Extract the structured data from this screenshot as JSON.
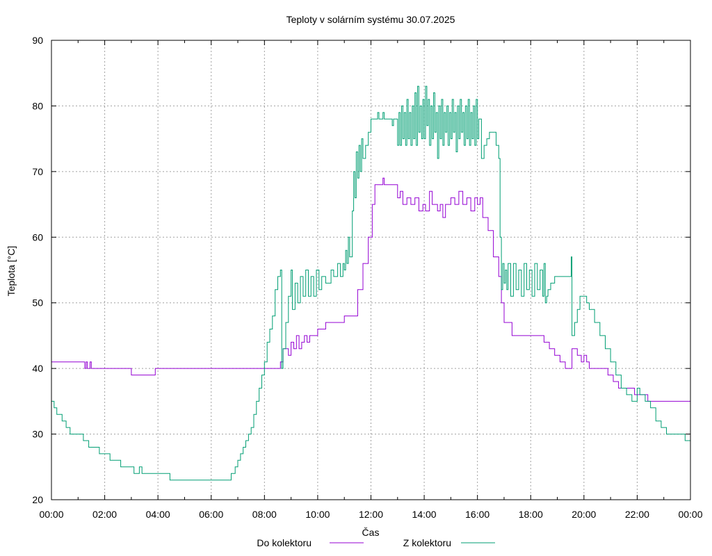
{
  "chart_data": {
    "type": "line",
    "title": "Teploty v solárním systému 30.07.2025",
    "xlabel": "Čas",
    "ylabel": "Teplota [°C]",
    "xlim": [
      0,
      24
    ],
    "ylim": [
      20,
      90
    ],
    "grid": true,
    "legend_position": "bottom-center",
    "xticks": [
      {
        "v": 0,
        "label": "00:00"
      },
      {
        "v": 2,
        "label": "02:00"
      },
      {
        "v": 4,
        "label": "04:00"
      },
      {
        "v": 6,
        "label": "06:00"
      },
      {
        "v": 8,
        "label": "08:00"
      },
      {
        "v": 10,
        "label": "10:00"
      },
      {
        "v": 12,
        "label": "12:00"
      },
      {
        "v": 14,
        "label": "14:00"
      },
      {
        "v": 16,
        "label": "16:00"
      },
      {
        "v": 18,
        "label": "18:00"
      },
      {
        "v": 20,
        "label": "20:00"
      },
      {
        "v": 22,
        "label": "22:00"
      },
      {
        "v": 24,
        "label": "00:00"
      }
    ],
    "yticks": [
      20,
      30,
      40,
      50,
      60,
      70,
      80,
      90
    ],
    "series": [
      {
        "name": "Do kolektoru",
        "color": "#9400d3",
        "points": [
          [
            0,
            41
          ],
          [
            1.25,
            41
          ],
          [
            1.25,
            40
          ],
          [
            1.3,
            41
          ],
          [
            1.35,
            40
          ],
          [
            1.45,
            41
          ],
          [
            1.5,
            40
          ],
          [
            3.0,
            40
          ],
          [
            3.0,
            39
          ],
          [
            3.9,
            39
          ],
          [
            3.9,
            40
          ],
          [
            8.6,
            40
          ],
          [
            8.6,
            41
          ],
          [
            8.7,
            43
          ],
          [
            8.85,
            43
          ],
          [
            8.9,
            42
          ],
          [
            9.0,
            44
          ],
          [
            9.1,
            43
          ],
          [
            9.2,
            45
          ],
          [
            9.3,
            43
          ],
          [
            9.4,
            44
          ],
          [
            9.5,
            45
          ],
          [
            9.6,
            44
          ],
          [
            9.7,
            45
          ],
          [
            9.9,
            45
          ],
          [
            10.0,
            46
          ],
          [
            10.2,
            46
          ],
          [
            10.3,
            47
          ],
          [
            11.0,
            47
          ],
          [
            11.0,
            48
          ],
          [
            11.4,
            48
          ],
          [
            11.5,
            52
          ],
          [
            11.7,
            56
          ],
          [
            11.9,
            60
          ],
          [
            12.05,
            65
          ],
          [
            12.15,
            68
          ],
          [
            12.4,
            68
          ],
          [
            12.45,
            69
          ],
          [
            12.5,
            68
          ],
          [
            12.9,
            68
          ],
          [
            13.0,
            66
          ],
          [
            13.1,
            67
          ],
          [
            13.2,
            65
          ],
          [
            13.35,
            66
          ],
          [
            13.5,
            65
          ],
          [
            13.65,
            66
          ],
          [
            13.8,
            64
          ],
          [
            13.95,
            65
          ],
          [
            14.05,
            64
          ],
          [
            14.2,
            67
          ],
          [
            14.3,
            65
          ],
          [
            14.5,
            64
          ],
          [
            14.6,
            65
          ],
          [
            14.7,
            63
          ],
          [
            14.8,
            65
          ],
          [
            15.0,
            66
          ],
          [
            15.15,
            65
          ],
          [
            15.3,
            67
          ],
          [
            15.45,
            65
          ],
          [
            15.6,
            66
          ],
          [
            15.75,
            64
          ],
          [
            15.9,
            66
          ],
          [
            16.0,
            65
          ],
          [
            16.1,
            66
          ],
          [
            16.2,
            63
          ],
          [
            16.4,
            61
          ],
          [
            16.6,
            57
          ],
          [
            16.8,
            54
          ],
          [
            16.9,
            50
          ],
          [
            17.0,
            47
          ],
          [
            17.3,
            45
          ],
          [
            18.4,
            45
          ],
          [
            18.5,
            44
          ],
          [
            18.7,
            43
          ],
          [
            18.9,
            42
          ],
          [
            19.1,
            41
          ],
          [
            19.3,
            40
          ],
          [
            19.5,
            40
          ],
          [
            19.55,
            43
          ],
          [
            19.7,
            43
          ],
          [
            19.75,
            42
          ],
          [
            19.9,
            41
          ],
          [
            20.0,
            42
          ],
          [
            20.1,
            41
          ],
          [
            20.2,
            40
          ],
          [
            20.9,
            39
          ],
          [
            21.1,
            38
          ],
          [
            21.3,
            37
          ],
          [
            21.8,
            37
          ],
          [
            21.9,
            36
          ],
          [
            22.3,
            36
          ],
          [
            22.4,
            35
          ],
          [
            24,
            35
          ]
        ]
      },
      {
        "name": "Z kolektoru",
        "color": "#009e73",
        "points": [
          [
            0,
            35
          ],
          [
            0.1,
            34
          ],
          [
            0.2,
            33
          ],
          [
            0.4,
            32
          ],
          [
            0.55,
            31
          ],
          [
            0.7,
            30
          ],
          [
            1.1,
            30
          ],
          [
            1.2,
            29
          ],
          [
            1.4,
            28
          ],
          [
            1.75,
            28
          ],
          [
            1.8,
            27
          ],
          [
            2.1,
            27
          ],
          [
            2.2,
            26
          ],
          [
            2.5,
            26
          ],
          [
            2.6,
            25
          ],
          [
            3.0,
            25
          ],
          [
            3.1,
            24
          ],
          [
            3.3,
            25
          ],
          [
            3.4,
            24
          ],
          [
            3.5,
            24
          ],
          [
            4.4,
            24
          ],
          [
            4.45,
            23
          ],
          [
            6.7,
            23
          ],
          [
            6.75,
            24
          ],
          [
            6.9,
            25
          ],
          [
            7.0,
            26
          ],
          [
            7.1,
            27
          ],
          [
            7.2,
            28
          ],
          [
            7.3,
            29
          ],
          [
            7.4,
            30
          ],
          [
            7.5,
            31
          ],
          [
            7.6,
            33
          ],
          [
            7.7,
            35
          ],
          [
            7.8,
            37
          ],
          [
            7.9,
            39
          ],
          [
            8.0,
            41
          ],
          [
            8.1,
            44
          ],
          [
            8.2,
            46
          ],
          [
            8.3,
            48
          ],
          [
            8.4,
            52
          ],
          [
            8.5,
            54
          ],
          [
            8.6,
            55
          ],
          [
            8.65,
            40
          ],
          [
            8.7,
            43
          ],
          [
            8.8,
            47
          ],
          [
            8.9,
            51
          ],
          [
            9.0,
            55
          ],
          [
            9.05,
            49
          ],
          [
            9.15,
            53
          ],
          [
            9.25,
            50
          ],
          [
            9.35,
            54
          ],
          [
            9.45,
            51
          ],
          [
            9.55,
            55
          ],
          [
            9.65,
            51
          ],
          [
            9.75,
            54
          ],
          [
            9.85,
            51
          ],
          [
            9.95,
            55
          ],
          [
            10.05,
            52
          ],
          [
            10.15,
            54
          ],
          [
            10.3,
            53
          ],
          [
            10.5,
            55
          ],
          [
            10.6,
            54
          ],
          [
            10.75,
            56
          ],
          [
            10.85,
            54
          ],
          [
            10.95,
            56
          ],
          [
            11.0,
            55
          ],
          [
            11.05,
            58
          ],
          [
            11.1,
            56
          ],
          [
            11.15,
            60
          ],
          [
            11.2,
            57
          ],
          [
            11.3,
            64
          ],
          [
            11.35,
            70
          ],
          [
            11.4,
            66
          ],
          [
            11.45,
            73
          ],
          [
            11.5,
            69
          ],
          [
            11.55,
            74
          ],
          [
            11.6,
            70
          ],
          [
            11.65,
            75
          ],
          [
            11.7,
            72
          ],
          [
            11.8,
            74
          ],
          [
            11.9,
            76
          ],
          [
            12.0,
            78
          ],
          [
            12.2,
            78
          ],
          [
            12.25,
            79
          ],
          [
            12.3,
            78
          ],
          [
            12.45,
            79
          ],
          [
            12.5,
            78
          ],
          [
            12.8,
            77
          ],
          [
            12.85,
            78
          ],
          [
            13.0,
            74
          ],
          [
            13.05,
            79
          ],
          [
            13.1,
            74
          ],
          [
            13.15,
            80
          ],
          [
            13.2,
            75
          ],
          [
            13.25,
            79
          ],
          [
            13.3,
            74
          ],
          [
            13.35,
            81
          ],
          [
            13.4,
            75
          ],
          [
            13.45,
            79
          ],
          [
            13.5,
            74
          ],
          [
            13.55,
            80
          ],
          [
            13.6,
            75
          ],
          [
            13.65,
            82
          ],
          [
            13.7,
            74
          ],
          [
            13.75,
            83
          ],
          [
            13.8,
            76
          ],
          [
            13.85,
            80
          ],
          [
            13.9,
            75
          ],
          [
            13.95,
            81
          ],
          [
            14.0,
            75
          ],
          [
            14.05,
            83
          ],
          [
            14.1,
            77
          ],
          [
            14.15,
            81
          ],
          [
            14.2,
            74
          ],
          [
            14.25,
            80
          ],
          [
            14.3,
            75
          ],
          [
            14.35,
            82
          ],
          [
            14.4,
            76
          ],
          [
            14.45,
            79
          ],
          [
            14.5,
            72
          ],
          [
            14.55,
            80
          ],
          [
            14.6,
            75
          ],
          [
            14.65,
            81
          ],
          [
            14.7,
            74
          ],
          [
            14.75,
            79
          ],
          [
            14.8,
            76
          ],
          [
            14.85,
            80
          ],
          [
            14.9,
            74
          ],
          [
            14.95,
            79
          ],
          [
            15.0,
            75
          ],
          [
            15.05,
            81
          ],
          [
            15.1,
            76
          ],
          [
            15.15,
            79
          ],
          [
            15.2,
            73
          ],
          [
            15.25,
            80
          ],
          [
            15.3,
            75
          ],
          [
            15.35,
            81
          ],
          [
            15.4,
            76
          ],
          [
            15.45,
            79
          ],
          [
            15.5,
            74
          ],
          [
            15.55,
            80
          ],
          [
            15.6,
            75
          ],
          [
            15.65,
            81
          ],
          [
            15.7,
            74
          ],
          [
            15.75,
            79
          ],
          [
            15.8,
            75
          ],
          [
            15.85,
            80
          ],
          [
            15.9,
            74
          ],
          [
            15.95,
            81
          ],
          [
            16.0,
            75
          ],
          [
            16.05,
            78
          ],
          [
            16.15,
            72
          ],
          [
            16.25,
            74
          ],
          [
            16.35,
            75
          ],
          [
            16.45,
            76
          ],
          [
            16.6,
            76
          ],
          [
            16.7,
            74
          ],
          [
            16.8,
            72
          ],
          [
            16.85,
            60
          ],
          [
            16.9,
            52
          ],
          [
            16.95,
            56
          ],
          [
            17.0,
            53
          ],
          [
            17.05,
            55
          ],
          [
            17.1,
            52
          ],
          [
            17.15,
            56
          ],
          [
            17.25,
            51
          ],
          [
            17.35,
            56
          ],
          [
            17.45,
            52
          ],
          [
            17.55,
            55
          ],
          [
            17.65,
            51
          ],
          [
            17.75,
            56
          ],
          [
            17.85,
            52
          ],
          [
            17.95,
            55
          ],
          [
            18.05,
            51
          ],
          [
            18.15,
            56
          ],
          [
            18.25,
            52
          ],
          [
            18.35,
            55
          ],
          [
            18.45,
            51
          ],
          [
            18.5,
            56
          ],
          [
            18.55,
            50
          ],
          [
            18.6,
            51
          ],
          [
            18.65,
            52
          ],
          [
            18.75,
            53
          ],
          [
            18.9,
            54
          ],
          [
            19.5,
            54
          ],
          [
            19.52,
            57
          ],
          [
            19.55,
            45
          ],
          [
            19.65,
            47
          ],
          [
            19.75,
            49
          ],
          [
            19.85,
            51
          ],
          [
            20.05,
            51
          ],
          [
            20.1,
            50
          ],
          [
            20.2,
            49
          ],
          [
            20.4,
            47
          ],
          [
            20.6,
            45
          ],
          [
            20.8,
            43
          ],
          [
            21.0,
            41
          ],
          [
            21.2,
            39
          ],
          [
            21.4,
            37
          ],
          [
            21.6,
            36
          ],
          [
            21.8,
            35
          ],
          [
            22.0,
            37
          ],
          [
            22.1,
            36
          ],
          [
            22.3,
            35
          ],
          [
            22.5,
            34
          ],
          [
            22.7,
            32
          ],
          [
            22.9,
            31
          ],
          [
            23.1,
            30
          ],
          [
            23.3,
            30
          ],
          [
            23.6,
            30
          ],
          [
            23.8,
            29
          ],
          [
            24,
            30
          ]
        ]
      }
    ]
  }
}
